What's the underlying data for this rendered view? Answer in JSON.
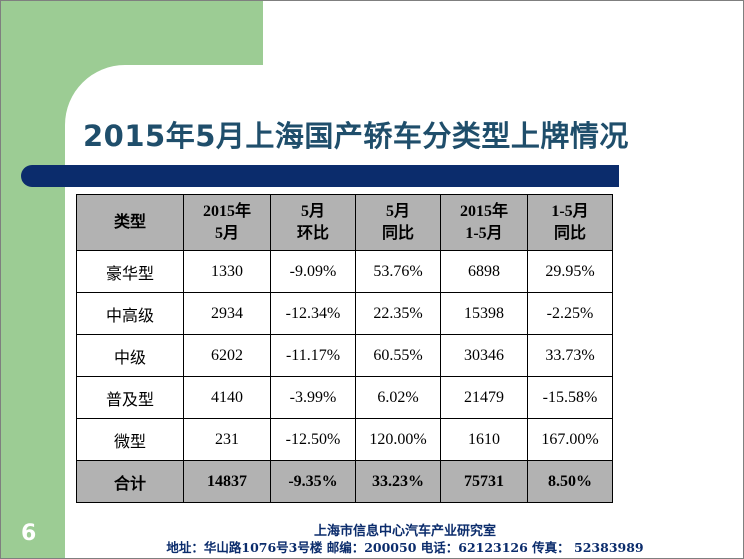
{
  "slide": {
    "title": "2015年5月上海国产轿车分类型上牌情况",
    "page_number": "6"
  },
  "table": {
    "headers": [
      [
        "类型"
      ],
      [
        "2015年",
        "5月"
      ],
      [
        "5月",
        "环比"
      ],
      [
        "5月",
        "同比"
      ],
      [
        "2015年",
        "1-5月"
      ],
      [
        "1-5月",
        "同比"
      ]
    ],
    "rows": [
      [
        "豪华型",
        "1330",
        "-9.09%",
        "53.76%",
        "6898",
        "29.95%"
      ],
      [
        "中高级",
        "2934",
        "-12.34%",
        "22.35%",
        "15398",
        "-2.25%"
      ],
      [
        "中级",
        "6202",
        "-11.17%",
        "60.55%",
        "30346",
        "33.73%"
      ],
      [
        "普及型",
        "4140",
        "-3.99%",
        "6.02%",
        "21479",
        "-15.58%"
      ],
      [
        "微型",
        "231",
        "-12.50%",
        "120.00%",
        "1610",
        "167.00%"
      ]
    ],
    "total": [
      "合计",
      "14837",
      "-9.35%",
      "33.23%",
      "75731",
      "8.50%"
    ]
  },
  "footer": {
    "org": "上海市信息中心汽车产业研究室",
    "contact": "地址：华山路1076号3号楼    邮编：200050  电话：62123126  传真：  52383989"
  },
  "colors": {
    "accent_green": "#9ccc94",
    "navy": "#0b2c6c",
    "title": "#1f4e6b",
    "header_gray": "#b2b2b2"
  }
}
